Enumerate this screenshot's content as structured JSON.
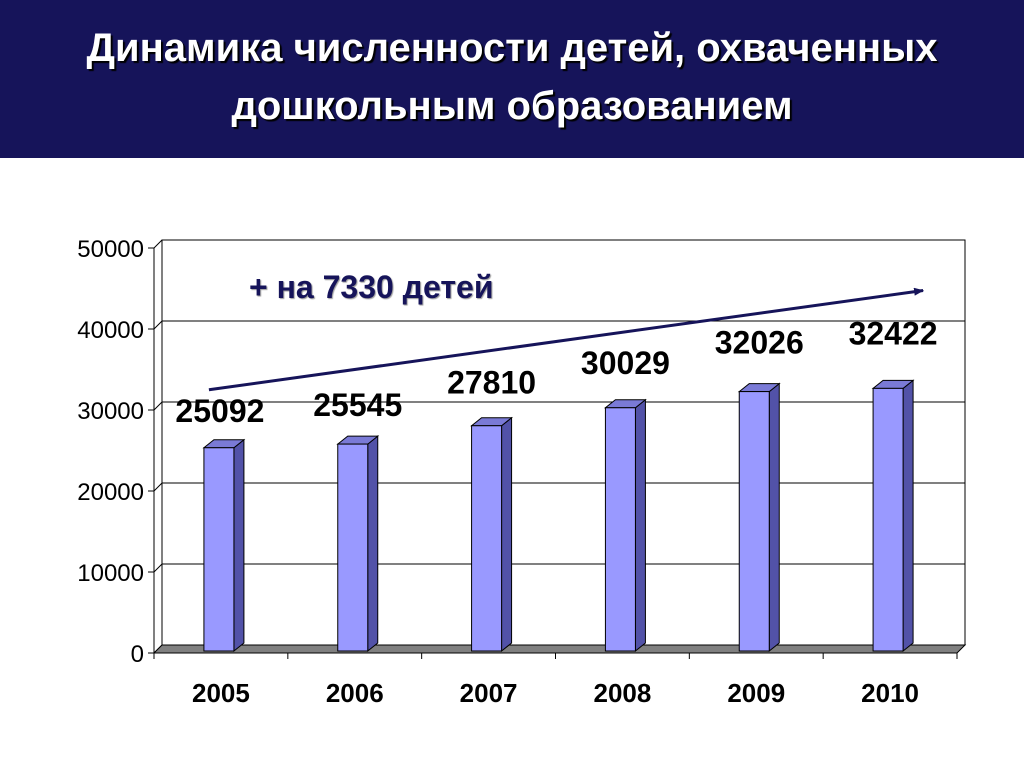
{
  "slide": {
    "title": "Динамика численности детей, охваченных дошкольным образованием"
  },
  "chart_data": {
    "type": "bar",
    "title": "",
    "xlabel": "",
    "ylabel": "",
    "categories": [
      "2005",
      "2006",
      "2007",
      "2008",
      "2009",
      "2010"
    ],
    "values": [
      25092,
      25545,
      27810,
      30029,
      32026,
      32422
    ],
    "data_labels": [
      "25092",
      "25545",
      "27810",
      "30029",
      "32026",
      "32422"
    ],
    "ylim": [
      0,
      50000
    ],
    "yticks": [
      0,
      10000,
      20000,
      30000,
      40000,
      50000
    ],
    "ytick_labels": [
      "0",
      "10000",
      "20000",
      "30000",
      "40000",
      "50000"
    ],
    "grid": true,
    "legend": "none",
    "annotation": {
      "text": "+ на 7330 детей",
      "arrow": {
        "from": [
          2005,
          32500
        ],
        "to": [
          2010,
          45000
        ]
      }
    },
    "colors": {
      "bar_front": "#9999ff",
      "bar_side": "#5252a8",
      "bar_top": "#7a7ad6",
      "arrow": "#16145a",
      "annotation_text": "#16145a",
      "floor": "#808080"
    }
  }
}
